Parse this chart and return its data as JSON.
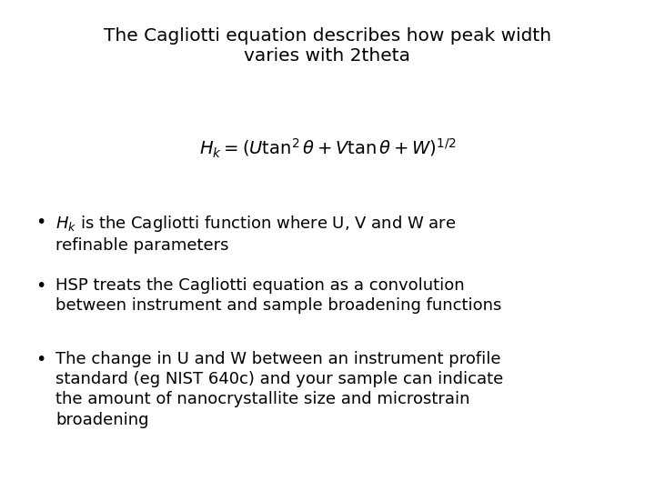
{
  "title_line1": "The Cagliotti equation describes how peak width",
  "title_line2": "varies with 2theta",
  "equation": "$H_k = \\left(U\\tan^2\\theta + V\\tan\\theta + W\\right)^{1/2}$",
  "bullet1_text": "$H_k$ is the Cagliotti function where U, V and W are\nrefinable parameters",
  "bullet2_text": "HSP treats the Cagliotti equation as a convolution\nbetween instrument and sample broadening functions",
  "bullet3_text": "The change in U and W between an instrument profile\nstandard (eg NIST 640c) and your sample can indicate\nthe amount of nanocrystallite size and microstrain\nbroadening",
  "background_color": "#ffffff",
  "text_color": "#000000",
  "title_fontsize": 14.5,
  "equation_fontsize": 14,
  "bullet_fontsize": 13
}
